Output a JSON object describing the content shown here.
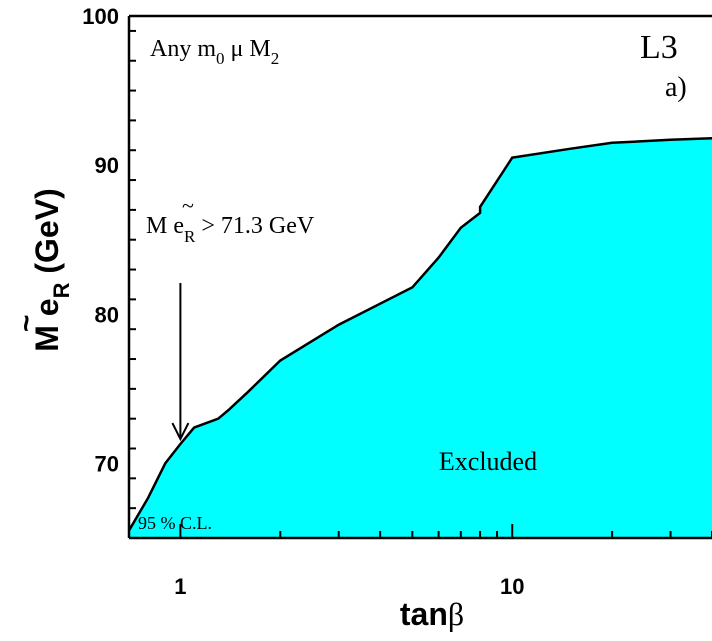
{
  "chart_data": {
    "type": "area",
    "x_scale": "log",
    "xlim": [
      0.7,
      40
    ],
    "ylim": [
      65,
      100
    ],
    "xlabel": {
      "main": "tan",
      "symbol": "β"
    },
    "ylabel": {
      "prefix": "M ",
      "particle": "e",
      "tilde": "~",
      "sub": "R",
      "suffix": " (GeV)"
    },
    "x_ticks": [
      {
        "value": 1,
        "label": "1"
      },
      {
        "value": 10,
        "label": "10"
      }
    ],
    "y_ticks": [
      {
        "value": 70,
        "label": "70"
      },
      {
        "value": 80,
        "label": "80"
      },
      {
        "value": 90,
        "label": "90"
      },
      {
        "value": 100,
        "label": "100"
      }
    ],
    "series": [
      {
        "fill_color": "#00ffff",
        "x": [
          0.7,
          0.8,
          0.9,
          1.0,
          1.1,
          1.3,
          1.4,
          1.6,
          2.0,
          3.0,
          5.0,
          6.0,
          7.0,
          8.0,
          8.0,
          10.0,
          15.0,
          20.0,
          30.0,
          40.0
        ],
        "y": [
          65.5,
          67.7,
          70.0,
          71.3,
          72.4,
          73.0,
          73.6,
          74.8,
          76.9,
          79.3,
          81.8,
          83.8,
          85.8,
          86.8,
          87.2,
          90.5,
          91.1,
          91.5,
          91.7,
          91.8
        ]
      }
    ],
    "annotations": {
      "top_left": {
        "text": "Any m",
        "sub": "0",
        "after": "  μ  M",
        "sub2": "2"
      },
      "experiment": "L3",
      "panel": "a)",
      "limit": {
        "prefix": "M ",
        "particle": "e",
        "tilde": "~",
        "sub": "R",
        "suffix": " > 71.3  GeV",
        "arrow_to_x": 1,
        "arrow_to_y": 71.3
      },
      "region": "Excluded",
      "cl": "95 % C.L."
    },
    "colors": {
      "fill": "#00ffff",
      "line": "#000000",
      "axes": "#000000"
    }
  }
}
